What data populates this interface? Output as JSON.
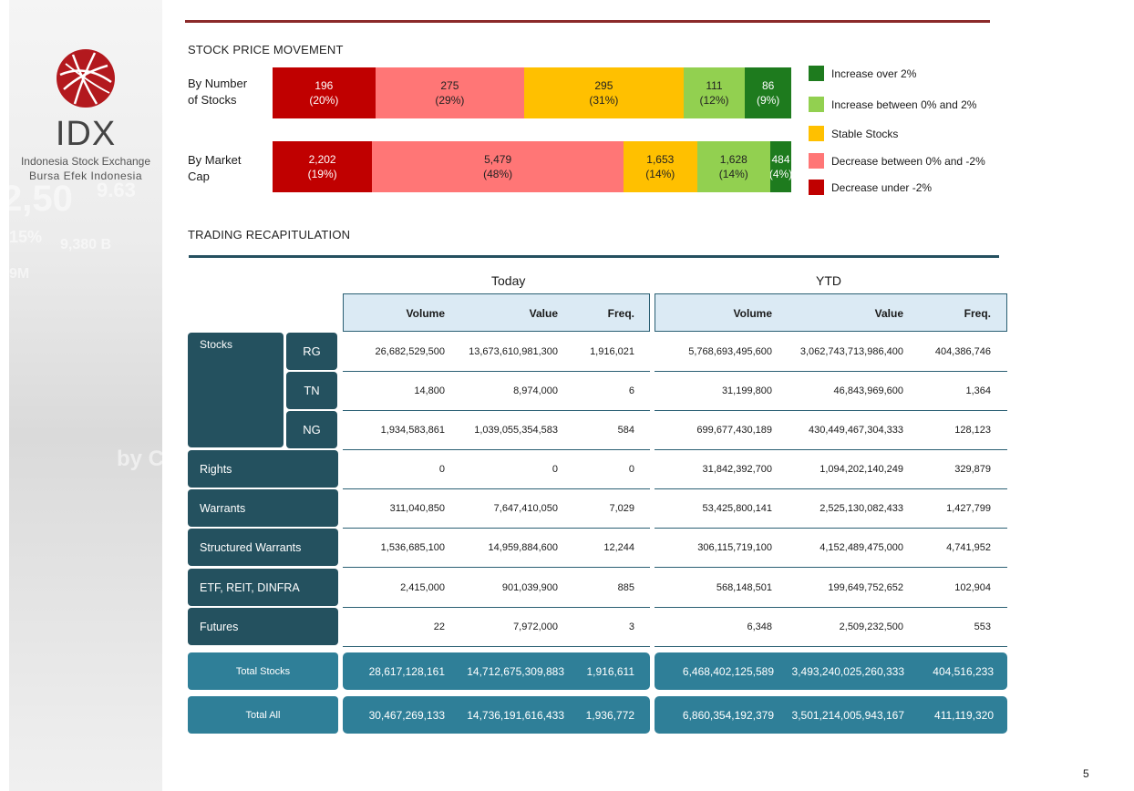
{
  "sidebar": {
    "brand": "IDX",
    "subtitle1": "Indonesia Stock Exchange",
    "subtitle2": "Bursa  Efek  Indonesia",
    "bg_numbers": [
      "2,50",
      "9.63",
      "9,380 B",
      "15%",
      "9M",
      "by Ch"
    ]
  },
  "movement": {
    "title": "STOCK PRICE MOVEMENT",
    "row1_label": [
      "By Number",
      "of Stocks"
    ],
    "row2_label": [
      "By Market",
      "Cap"
    ],
    "by_number": [
      {
        "value": "196",
        "pct": "(20%)",
        "share": 20,
        "color": "#c00000",
        "text_color": "#ffffff"
      },
      {
        "value": "275",
        "pct": "(29%)",
        "share": 29,
        "color": "#ff7676",
        "text_color": "#222222"
      },
      {
        "value": "295",
        "pct": "(31%)",
        "share": 31,
        "color": "#ffc000",
        "text_color": "#222222"
      },
      {
        "value": "111",
        "pct": "(12%)",
        "share": 12,
        "color": "#92d050",
        "text_color": "#222222"
      },
      {
        "value": "86",
        "pct": "(9%)",
        "share": 9,
        "color": "#1e7b1e",
        "text_color": "#ffffff"
      }
    ],
    "by_market_cap": [
      {
        "value": "2,202",
        "pct": "(19%)",
        "share": 19,
        "color": "#c00000",
        "text_color": "#ffffff"
      },
      {
        "value": "5,479",
        "pct": "(48%)",
        "share": 48,
        "color": "#ff7676",
        "text_color": "#222222"
      },
      {
        "value": "1,653",
        "pct": "(14%)",
        "share": 14,
        "color": "#ffc000",
        "text_color": "#222222"
      },
      {
        "value": "1,628",
        "pct": "(14%)",
        "share": 14,
        "color": "#92d050",
        "text_color": "#222222"
      },
      {
        "value": "484",
        "pct": "(4%)",
        "share": 4,
        "color": "#1e7b1e",
        "text_color": "#ffffff"
      }
    ],
    "legend": [
      {
        "label": "Increase over 2%",
        "color": "#1e7b1e"
      },
      {
        "label": "Increase between 0% and 2%",
        "color": "#92d050"
      },
      {
        "label": "Stable Stocks",
        "color": "#ffc000"
      },
      {
        "label": "Decrease between 0% and -2%",
        "color": "#ff7676"
      },
      {
        "label": "Decrease under -2%",
        "color": "#c00000"
      }
    ]
  },
  "trading": {
    "title": "TRADING RECAPITULATION",
    "group_today": "Today",
    "group_ytd": "YTD",
    "headers": [
      "Volume",
      "Value",
      "Freq."
    ],
    "stocks_label": "Stocks",
    "rows": [
      {
        "label": "RG",
        "today": [
          "26,682,529,500",
          "13,673,610,981,300",
          "1,916,021"
        ],
        "ytd": [
          "5,768,693,495,600",
          "3,062,743,713,986,400",
          "404,386,746"
        ]
      },
      {
        "label": "TN",
        "today": [
          "14,800",
          "8,974,000",
          "6"
        ],
        "ytd": [
          "31,199,800",
          "46,843,969,600",
          "1,364"
        ]
      },
      {
        "label": "NG",
        "today": [
          "1,934,583,861",
          "1,039,055,354,583",
          "584"
        ],
        "ytd": [
          "699,677,430,189",
          "430,449,467,304,333",
          "128,123"
        ]
      },
      {
        "label": "Rights",
        "today": [
          "0",
          "0",
          "0"
        ],
        "ytd": [
          "31,842,392,700",
          "1,094,202,140,249",
          "329,879"
        ]
      },
      {
        "label": "Warrants",
        "today": [
          "311,040,850",
          "7,647,410,050",
          "7,029"
        ],
        "ytd": [
          "53,425,800,141",
          "2,525,130,082,433",
          "1,427,799"
        ]
      },
      {
        "label": "Structured Warrants",
        "today": [
          "1,536,685,100",
          "14,959,884,600",
          "12,244"
        ],
        "ytd": [
          "306,115,719,100",
          "4,152,489,475,000",
          "4,741,952"
        ]
      },
      {
        "label": "ETF, REIT, DINFRA",
        "today": [
          "2,415,000",
          "901,039,900",
          "885"
        ],
        "ytd": [
          "568,148,501",
          "199,649,752,652",
          "102,904"
        ]
      },
      {
        "label": "Futures",
        "today": [
          "22",
          "7,972,000",
          "3"
        ],
        "ytd": [
          "6,348",
          "2,509,232,500",
          "553"
        ]
      }
    ],
    "totals": [
      {
        "label": "Total Stocks",
        "today": [
          "28,617,128,161",
          "14,712,675,309,883",
          "1,916,611"
        ],
        "ytd": [
          "6,468,402,125,589",
          "3,493,240,025,260,333",
          "404,516,233"
        ]
      },
      {
        "label": "Total All",
        "today": [
          "30,467,269,133",
          "14,736,191,616,433",
          "1,936,772"
        ],
        "ytd": [
          "6,860,354,192,379",
          "3,501,214,005,943,167",
          "411,119,320"
        ]
      }
    ]
  },
  "page_number": "5"
}
